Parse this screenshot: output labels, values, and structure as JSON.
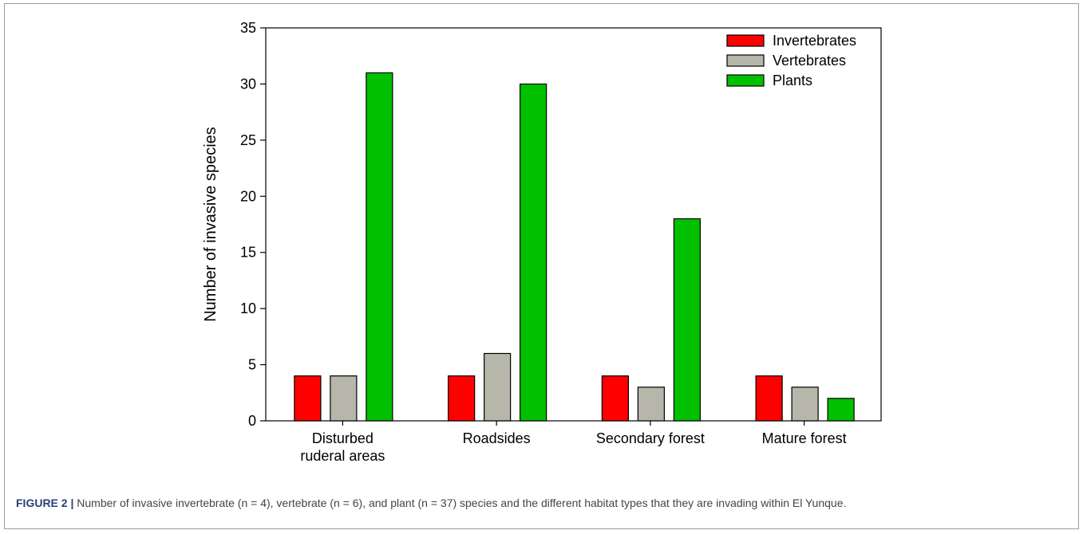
{
  "chart_data": {
    "type": "bar",
    "categories": [
      [
        "Disturbed",
        "ruderal areas"
      ],
      [
        "Roadsides"
      ],
      [
        "Secondary forest"
      ],
      [
        "Mature forest"
      ]
    ],
    "series": [
      {
        "name": "Invertebrates",
        "color": "#ff0000",
        "values": [
          4,
          4,
          4,
          4
        ]
      },
      {
        "name": "Vertebrates",
        "color": "#b7b6aa",
        "values": [
          4,
          6,
          3,
          3
        ]
      },
      {
        "name": "Plants",
        "color": "#00c000",
        "values": [
          31,
          30,
          18,
          2
        ]
      }
    ],
    "ylabel": "Number of invasive species",
    "xlabel": "",
    "ylim": [
      0,
      35
    ],
    "yticks": [
      0,
      5,
      10,
      15,
      20,
      25,
      30,
      35
    ],
    "legend_position": "top-right",
    "grid": false
  },
  "caption": {
    "label": "FIGURE 2 |",
    "text": "Number of invasive invertebrate (n = 4), vertebrate (n = 6), and plant (n = 37) species and the different habitat types that they are invading within El Yunque."
  }
}
